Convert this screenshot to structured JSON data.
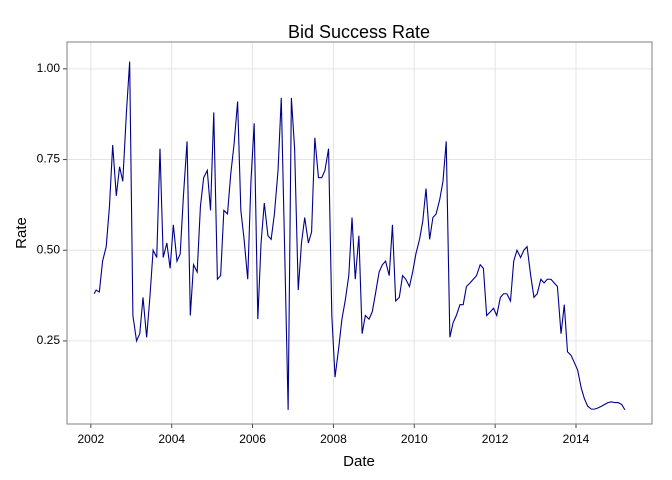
{
  "chart_data": {
    "type": "line",
    "title": "Bid Success Rate",
    "x_label": "Date",
    "y_label": "Rate",
    "xlim": [
      2001.41,
      2015.88
    ],
    "ylim": [
      0.021,
      1.074
    ],
    "xticks": [
      2002,
      2004,
      2006,
      2008,
      2010,
      2012,
      2014
    ],
    "yticks": [
      {
        "value": 0.25,
        "label": "0.25"
      },
      {
        "value": 0.5,
        "label": "0.50"
      },
      {
        "value": 0.75,
        "label": "0.75"
      },
      {
        "value": 1.0,
        "label": "1.00"
      }
    ],
    "grid": true,
    "series": [
      {
        "name": "Rate",
        "color": "#00008b",
        "x": [
          2002.08,
          2002.13,
          2002.21,
          2002.29,
          2002.38,
          2002.46,
          2002.54,
          2002.63,
          2002.71,
          2002.79,
          2002.88,
          2002.96,
          2003.04,
          2003.13,
          2003.21,
          2003.29,
          2003.38,
          2003.46,
          2003.54,
          2003.63,
          2003.71,
          2003.79,
          2003.88,
          2003.96,
          2004.04,
          2004.13,
          2004.21,
          2004.29,
          2004.38,
          2004.46,
          2004.54,
          2004.63,
          2004.71,
          2004.79,
          2004.88,
          2004.96,
          2005.04,
          2005.13,
          2005.21,
          2005.29,
          2005.38,
          2005.46,
          2005.54,
          2005.63,
          2005.71,
          2005.79,
          2005.88,
          2005.96,
          2006.04,
          2006.13,
          2006.21,
          2006.29,
          2006.38,
          2006.46,
          2006.54,
          2006.63,
          2006.71,
          2006.79,
          2006.88,
          2006.96,
          2007.04,
          2007.13,
          2007.21,
          2007.29,
          2007.38,
          2007.46,
          2007.54,
          2007.63,
          2007.71,
          2007.79,
          2007.88,
          2007.96,
          2008.04,
          2008.13,
          2008.21,
          2008.29,
          2008.38,
          2008.46,
          2008.54,
          2008.63,
          2008.71,
          2008.79,
          2008.88,
          2008.96,
          2009.04,
          2009.13,
          2009.21,
          2009.29,
          2009.38,
          2009.46,
          2009.54,
          2009.63,
          2009.71,
          2009.79,
          2009.88,
          2009.96,
          2010.04,
          2010.13,
          2010.21,
          2010.29,
          2010.38,
          2010.46,
          2010.54,
          2010.63,
          2010.71,
          2010.79,
          2010.88,
          2010.96,
          2011.04,
          2011.13,
          2011.21,
          2011.29,
          2011.38,
          2011.46,
          2011.54,
          2011.63,
          2011.71,
          2011.79,
          2011.88,
          2011.96,
          2012.04,
          2012.13,
          2012.21,
          2012.29,
          2012.38,
          2012.46,
          2012.54,
          2012.63,
          2012.71,
          2012.79,
          2012.88,
          2012.96,
          2013.04,
          2013.13,
          2013.21,
          2013.29,
          2013.38,
          2013.46,
          2013.54,
          2013.63,
          2013.71,
          2013.79,
          2013.88,
          2013.96,
          2014.04,
          2014.13,
          2014.21,
          2014.29,
          2014.38,
          2014.46,
          2014.54,
          2014.63,
          2014.71,
          2014.79,
          2014.88,
          2014.96,
          2015.04,
          2015.13,
          2015.21
        ],
        "values": [
          0.38,
          0.39,
          0.385,
          0.47,
          0.51,
          0.62,
          0.79,
          0.65,
          0.73,
          0.69,
          0.88,
          1.02,
          0.32,
          0.25,
          0.27,
          0.37,
          0.26,
          0.37,
          0.5,
          0.48,
          0.78,
          0.48,
          0.52,
          0.45,
          0.57,
          0.47,
          0.49,
          0.65,
          0.8,
          0.32,
          0.46,
          0.44,
          0.62,
          0.7,
          0.72,
          0.61,
          0.88,
          0.42,
          0.43,
          0.61,
          0.6,
          0.71,
          0.79,
          0.91,
          0.61,
          0.53,
          0.42,
          0.69,
          0.85,
          0.31,
          0.52,
          0.63,
          0.54,
          0.53,
          0.6,
          0.72,
          0.92,
          0.52,
          0.06,
          0.92,
          0.78,
          0.39,
          0.52,
          0.59,
          0.52,
          0.55,
          0.81,
          0.7,
          0.7,
          0.72,
          0.78,
          0.32,
          0.15,
          0.23,
          0.31,
          0.36,
          0.43,
          0.59,
          0.42,
          0.54,
          0.27,
          0.32,
          0.31,
          0.33,
          0.38,
          0.44,
          0.46,
          0.47,
          0.43,
          0.57,
          0.36,
          0.37,
          0.43,
          0.42,
          0.4,
          0.44,
          0.49,
          0.53,
          0.58,
          0.67,
          0.53,
          0.59,
          0.6,
          0.64,
          0.69,
          0.8,
          0.26,
          0.3,
          0.32,
          0.35,
          0.35,
          0.4,
          0.41,
          0.42,
          0.43,
          0.46,
          0.45,
          0.32,
          0.33,
          0.34,
          0.32,
          0.37,
          0.38,
          0.38,
          0.36,
          0.47,
          0.5,
          0.48,
          0.5,
          0.51,
          0.43,
          0.37,
          0.38,
          0.42,
          0.41,
          0.42,
          0.42,
          0.41,
          0.4,
          0.27,
          0.35,
          0.22,
          0.21,
          0.19,
          0.17,
          0.12,
          0.09,
          0.07,
          0.062,
          0.062,
          0.065,
          0.07,
          0.075,
          0.08,
          0.082,
          0.08,
          0.08,
          0.075,
          0.06
        ]
      }
    ]
  }
}
